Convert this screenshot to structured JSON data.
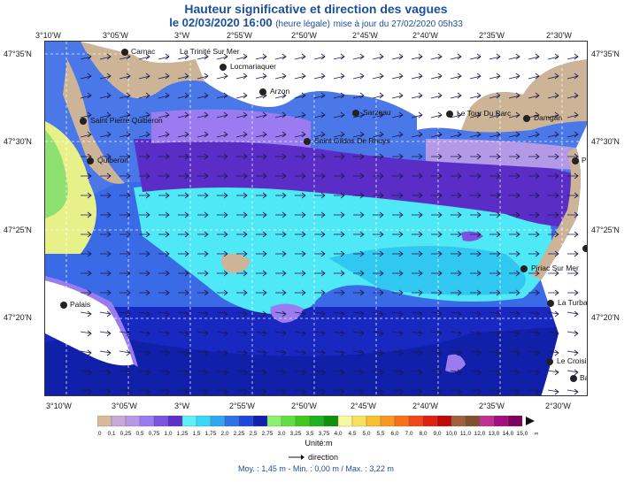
{
  "header": {
    "title": "Hauteur significative et direction des vagues",
    "date_line": "le 02/03/2020 16:00",
    "legal_note": "(heure légale)",
    "update_note": "mise à jour du 27/02/2020 05h33"
  },
  "axes": {
    "longitudes": [
      "3°10'W",
      "3°05'W",
      "3°W",
      "2°55'W",
      "2°50'W",
      "2°45'W",
      "2°40'W",
      "2°35'W",
      "2°30'W"
    ],
    "latitudes": [
      "47°35'N",
      "47°30'N",
      "47°25'N",
      "47°20'N"
    ]
  },
  "places": [
    {
      "name": "Carnac"
    },
    {
      "name": "La Trinité Sur Mer"
    },
    {
      "name": "Locmariaquer"
    },
    {
      "name": "Arzon"
    },
    {
      "name": "Sarzeau"
    },
    {
      "name": "Saint Pierre Quiberon"
    },
    {
      "name": "Saint Gildas De Rhuys"
    },
    {
      "name": "Quiberon"
    },
    {
      "name": "Le Tour Du Parc"
    },
    {
      "name": "Damgan"
    },
    {
      "name": "P"
    },
    {
      "name": "Piriac Sur Mer"
    },
    {
      "name": "La Turba"
    },
    {
      "name": "Le Croisi"
    },
    {
      "name": "Ba"
    },
    {
      "name": "Palais"
    }
  ],
  "legend": {
    "values": [
      "0,0",
      "0,1",
      "0,25",
      "0,5",
      "0,75",
      "1,0",
      "1,25",
      "1,5",
      "1,75",
      "2,0",
      "2,25",
      "2,5",
      "2,75",
      "3,0",
      "3,25",
      "3,5",
      "3,75",
      "4,0",
      "4,5",
      "5,0",
      "5,5",
      "6,0",
      "7,0",
      "8,0",
      "9,0",
      "10,0",
      "11,0",
      "12,0",
      "13,0",
      "14,0",
      "15,0",
      "∞"
    ],
    "colors": [
      "#d8b99a",
      "#c8a8d8",
      "#b49ae6",
      "#9a7cf0",
      "#7a54e0",
      "#5b2fc8",
      "#5cf0f8",
      "#3ad8f8",
      "#30a8f0",
      "#3070e8",
      "#2048d8",
      "#1020b0",
      "#8ef070",
      "#60e040",
      "#40c820",
      "#20b020",
      "#109010",
      "#f8f8a0",
      "#f8e060",
      "#f8c030",
      "#f89820",
      "#f87018",
      "#f04818",
      "#e02010",
      "#c00808",
      "#a06040",
      "#805030",
      "#c03090",
      "#a01080",
      "#800060"
    ],
    "unit": "Unité:m",
    "direction_label": "direction"
  },
  "stats": {
    "text": "Moy. : 1,45 m  -  Min. : 0,00 m / Max. : 3,22 m"
  }
}
